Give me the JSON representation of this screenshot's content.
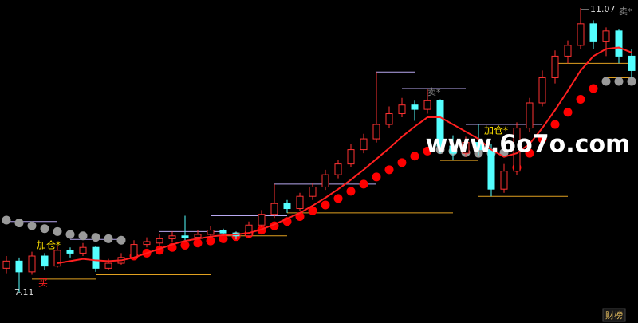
{
  "chart_data": {
    "type": "candlestick",
    "up_color": "#ff3232",
    "down_color": "#54ffff",
    "ma_color": "#ff2020",
    "candles": [
      [
        7.45,
        7.62,
        7.38,
        7.55
      ],
      [
        7.55,
        7.6,
        7.11,
        7.4
      ],
      [
        7.4,
        7.68,
        7.36,
        7.62
      ],
      [
        7.62,
        7.66,
        7.42,
        7.48
      ],
      [
        7.48,
        7.76,
        7.46,
        7.7
      ],
      [
        7.7,
        7.74,
        7.6,
        7.66
      ],
      [
        7.66,
        7.8,
        7.62,
        7.74
      ],
      [
        7.74,
        7.76,
        7.4,
        7.45
      ],
      [
        7.45,
        7.58,
        7.42,
        7.52
      ],
      [
        7.52,
        7.66,
        7.5,
        7.6
      ],
      [
        7.6,
        7.84,
        7.58,
        7.78
      ],
      [
        7.78,
        7.88,
        7.74,
        7.82
      ],
      [
        7.8,
        7.92,
        7.76,
        7.86
      ],
      [
        7.86,
        7.96,
        7.82,
        7.9
      ],
      [
        7.9,
        8.18,
        7.84,
        7.88
      ],
      [
        7.88,
        7.98,
        7.86,
        7.92
      ],
      [
        7.92,
        8.04,
        7.88,
        7.98
      ],
      [
        7.98,
        8.0,
        7.9,
        7.94
      ],
      [
        7.94,
        7.96,
        7.85,
        7.9
      ],
      [
        7.9,
        8.1,
        7.88,
        8.05
      ],
      [
        8.05,
        8.26,
        8.02,
        8.2
      ],
      [
        8.2,
        8.62,
        8.15,
        8.35
      ],
      [
        8.35,
        8.4,
        8.22,
        8.28
      ],
      [
        8.28,
        8.5,
        8.25,
        8.45
      ],
      [
        8.45,
        8.64,
        8.4,
        8.58
      ],
      [
        8.58,
        8.82,
        8.54,
        8.75
      ],
      [
        8.75,
        8.96,
        8.7,
        8.9
      ],
      [
        8.9,
        9.18,
        8.86,
        9.1
      ],
      [
        9.1,
        9.32,
        9.05,
        9.25
      ],
      [
        9.25,
        10.18,
        9.2,
        9.45
      ],
      [
        9.45,
        9.7,
        9.4,
        9.6
      ],
      [
        9.6,
        9.82,
        9.55,
        9.72
      ],
      [
        9.72,
        9.78,
        9.5,
        9.66
      ],
      [
        9.66,
        9.95,
        9.6,
        9.78
      ],
      [
        9.78,
        9.8,
        9.05,
        9.15
      ],
      [
        9.15,
        9.3,
        8.95,
        9.05
      ],
      [
        9.05,
        9.28,
        9.0,
        9.2
      ],
      [
        9.2,
        9.45,
        9.02,
        9.1
      ],
      [
        9.1,
        9.18,
        8.45,
        8.55
      ],
      [
        8.55,
        8.9,
        8.5,
        8.8
      ],
      [
        8.8,
        9.48,
        8.75,
        9.4
      ],
      [
        9.4,
        9.82,
        9.35,
        9.75
      ],
      [
        9.75,
        10.2,
        9.7,
        10.1
      ],
      [
        10.1,
        10.48,
        10.02,
        10.4
      ],
      [
        10.4,
        10.62,
        10.3,
        10.55
      ],
      [
        10.55,
        11.07,
        10.5,
        10.85
      ],
      [
        10.85,
        10.9,
        10.5,
        10.6
      ],
      [
        10.6,
        10.8,
        10.4,
        10.75
      ],
      [
        10.75,
        10.78,
        10.3,
        10.4
      ],
      [
        10.4,
        10.5,
        10.1,
        10.2
      ]
    ],
    "ma": [
      null,
      null,
      null,
      null,
      7.52,
      7.55,
      7.58,
      7.56,
      7.55,
      7.56,
      7.6,
      7.66,
      7.72,
      7.78,
      7.83,
      7.86,
      7.89,
      7.91,
      7.92,
      7.94,
      7.99,
      8.06,
      8.14,
      8.22,
      8.32,
      8.43,
      8.55,
      8.68,
      8.82,
      8.97,
      9.12,
      9.28,
      9.42,
      9.55,
      9.55,
      9.45,
      9.35,
      9.25,
      9.1,
      9.0,
      9.05,
      9.18,
      9.4,
      9.65,
      9.92,
      10.2,
      10.4,
      10.5,
      10.52,
      10.45
    ],
    "sar_up": {
      "color": "#ff0000",
      "values": [
        null,
        null,
        null,
        null,
        null,
        null,
        null,
        null,
        null,
        null,
        7.62,
        7.66,
        7.7,
        7.74,
        7.77,
        7.8,
        7.83,
        7.86,
        7.89,
        7.93,
        7.98,
        8.04,
        8.1,
        8.17,
        8.25,
        8.33,
        8.42,
        8.52,
        8.62,
        8.72,
        8.82,
        8.92,
        9.01,
        9.08,
        null,
        null,
        null,
        null,
        null,
        null,
        8.85,
        9.05,
        9.25,
        9.45,
        9.62,
        9.8,
        9.95,
        null,
        null,
        null
      ]
    },
    "sar_down": {
      "color": "#9a9a9a",
      "values": [
        8.12,
        8.08,
        8.04,
        8.0,
        7.96,
        7.92,
        7.9,
        7.88,
        7.86,
        7.84,
        null,
        null,
        null,
        null,
        null,
        null,
        null,
        null,
        null,
        null,
        null,
        null,
        null,
        null,
        null,
        null,
        null,
        null,
        null,
        null,
        null,
        null,
        null,
        null,
        9.1,
        9.08,
        9.06,
        9.05,
        9.05,
        9.06,
        null,
        null,
        null,
        null,
        null,
        null,
        null,
        10.05,
        10.05,
        10.05
      ]
    },
    "levels": [
      {
        "value": 8.1,
        "span": [
          0,
          4
        ],
        "color": "#b8a8f0"
      },
      {
        "value": 7.3,
        "span": [
          2,
          7
        ],
        "color": "#e0a020"
      },
      {
        "value": 7.85,
        "span": [
          5,
          9
        ],
        "color": "#b8a8f0"
      },
      {
        "value": 7.36,
        "span": [
          7,
          16
        ],
        "color": "#e0a020"
      },
      {
        "value": 7.96,
        "span": [
          12,
          17
        ],
        "color": "#b8a8f0"
      },
      {
        "value": 8.18,
        "span": [
          16,
          22
        ],
        "color": "#b8a8f0"
      },
      {
        "value": 7.9,
        "span": [
          17,
          22
        ],
        "color": "#e0a020"
      },
      {
        "value": 8.62,
        "span": [
          21,
          29
        ],
        "color": "#b8a8f0"
      },
      {
        "value": 8.22,
        "span": [
          22,
          35
        ],
        "color": "#e0a020"
      },
      {
        "value": 10.18,
        "span": [
          29,
          32
        ],
        "color": "#b8a8f0"
      },
      {
        "value": 9.95,
        "span": [
          31,
          36
        ],
        "color": "#b8a8f0"
      },
      {
        "value": 8.95,
        "span": [
          34,
          37
        ],
        "color": "#e0a020"
      },
      {
        "value": 9.45,
        "span": [
          36,
          42
        ],
        "color": "#b8a8f0"
      },
      {
        "value": 8.45,
        "span": [
          37,
          44
        ],
        "color": "#e0a020"
      },
      {
        "value": 10.3,
        "span": [
          43,
          49
        ],
        "color": "#e0a020"
      },
      {
        "value": 10.1,
        "span": [
          47,
          49
        ],
        "color": "#e0a020"
      }
    ],
    "low": 7.11,
    "high": 11.07,
    "annotations": [
      "加仓*",
      "加仓*",
      "买",
      "卖*",
      "卖*"
    ],
    "watermark": "www.6o7o.com",
    "badge": "财榜"
  }
}
